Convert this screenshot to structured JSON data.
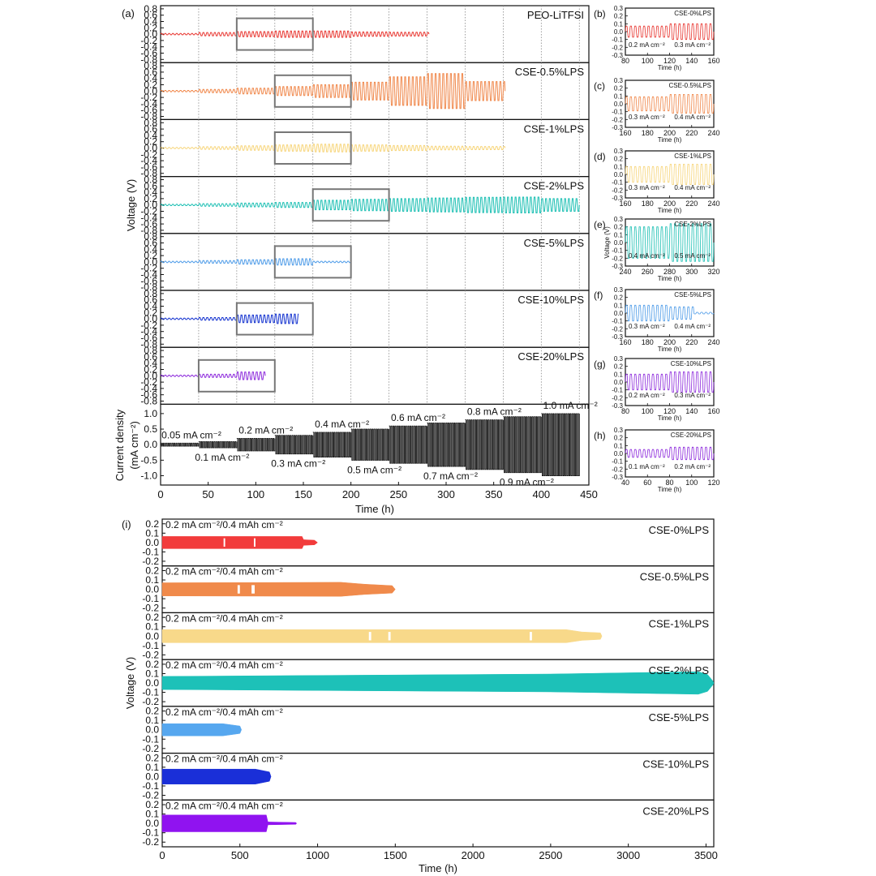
{
  "chart_data": [
    {
      "panel": "(a)",
      "type": "line",
      "xlabel": "Time (h)",
      "ylabel": "Voltage (V)",
      "xlim": [
        0,
        450
      ],
      "x_ticks": [
        "0",
        "50",
        "100",
        "150",
        "200",
        "250",
        "300",
        "350",
        "400",
        "450"
      ],
      "y_ticks": [
        "0.8",
        "0.6",
        "0.4",
        "0.2",
        "0.0",
        "-0.2",
        "-0.4",
        "-0.6",
        "-0.8"
      ],
      "ylim": [
        -0.9,
        0.9
      ],
      "grid": "vertical dotted lines at every 40 h step",
      "step_boundaries_h": [
        0,
        40,
        80,
        120,
        160,
        200,
        240,
        280,
        320,
        360,
        400,
        440
      ],
      "series": [
        {
          "name": "PEO-LiTFSI",
          "color": "#e8352f",
          "end_h": 282,
          "amplitude_v": [
            0.02,
            0.05,
            0.08,
            0.1,
            0.1,
            0.07,
            0.06,
            0.05
          ],
          "zoom_box_h": [
            80,
            160
          ]
        },
        {
          "name": "CSE-0.5%LPS",
          "color": "#f0874a",
          "end_h": 362,
          "amplitude_v": [
            0.02,
            0.05,
            0.09,
            0.14,
            0.2,
            0.28,
            0.45,
            0.55,
            0.3
          ],
          "zoom_box_h": [
            120,
            200
          ]
        },
        {
          "name": "CSE-1%LPS",
          "color": "#f7d57a",
          "end_h": 362,
          "amplitude_v": [
            0.02,
            0.04,
            0.07,
            0.1,
            0.12,
            0.1,
            0.08,
            0.06,
            0.05
          ],
          "zoom_box_h": [
            120,
            200
          ]
        },
        {
          "name": "CSE-2%LPS",
          "color": "#1bbfb3",
          "end_h": 440,
          "amplitude_v": [
            0.02,
            0.04,
            0.06,
            0.08,
            0.15,
            0.18,
            0.2,
            0.22,
            0.24,
            0.25,
            0.2
          ],
          "zoom_box_h": [
            160,
            240
          ]
        },
        {
          "name": "CSE-5%LPS",
          "color": "#4d9be8",
          "end_h": 200,
          "amplitude_v": [
            0.02,
            0.04,
            0.07,
            0.1,
            0.02
          ],
          "zoom_box_h": [
            120,
            200
          ]
        },
        {
          "name": "CSE-10%LPS",
          "color": "#1231cf",
          "end_h": 145,
          "amplitude_v": [
            0.02,
            0.04,
            0.12,
            0.15
          ],
          "zoom_box_h": [
            80,
            160
          ]
        },
        {
          "name": "CSE-20%LPS",
          "color": "#8d2bdc",
          "end_h": 110,
          "amplitude_v": [
            0.02,
            0.05,
            0.12
          ],
          "zoom_box_h": [
            40,
            120
          ]
        }
      ],
      "current_panel": {
        "ylabel_line1": "Current density",
        "ylabel_line2": "(mA cm⁻²)",
        "ylim": [
          -1.3,
          1.3
        ],
        "y_ticks": [
          "1.0",
          "0.5",
          "0.0",
          "-0.5",
          "-1.0"
        ],
        "color": "#111111",
        "steps": [
          {
            "t_start_h": 0,
            "t_end_h": 40,
            "current": 0.05
          },
          {
            "t_start_h": 40,
            "t_end_h": 80,
            "current": 0.1
          },
          {
            "t_start_h": 80,
            "t_end_h": 120,
            "current": 0.2
          },
          {
            "t_start_h": 120,
            "t_end_h": 160,
            "current": 0.3
          },
          {
            "t_start_h": 160,
            "t_end_h": 200,
            "current": 0.4
          },
          {
            "t_start_h": 200,
            "t_end_h": 240,
            "current": 0.5
          },
          {
            "t_start_h": 240,
            "t_end_h": 280,
            "current": 0.6
          },
          {
            "t_start_h": 280,
            "t_end_h": 320,
            "current": 0.7
          },
          {
            "t_start_h": 320,
            "t_end_h": 360,
            "current": 0.8
          },
          {
            "t_start_h": 360,
            "t_end_h": 400,
            "current": 0.9
          },
          {
            "t_start_h": 400,
            "t_end_h": 440,
            "current": 1.0
          }
        ],
        "annotations_top": [
          {
            "text": "0.05 mA cm⁻²",
            "t_h": 1
          },
          {
            "text": "0.2 mA cm⁻²",
            "t_h": 82
          },
          {
            "text": "0.4 mA cm⁻²",
            "t_h": 162
          },
          {
            "text": "0.6 mA cm⁻²",
            "t_h": 242
          },
          {
            "text": "0.8 mA cm⁻²",
            "t_h": 322
          },
          {
            "text": "1.0 mA cm⁻²",
            "t_h": 402
          }
        ],
        "annotations_bottom": [
          {
            "text": "0.1 mA cm⁻²",
            "t_h": 31
          },
          {
            "text": "0.3 mA cm⁻²",
            "t_h": 111
          },
          {
            "text": "0.5 mA cm⁻²",
            "t_h": 191
          },
          {
            "text": "0.7 mA cm⁻²",
            "t_h": 271
          },
          {
            "text": "0.9 mA cm⁻²",
            "t_h": 351
          }
        ]
      }
    },
    {
      "panels": "(b)-(h)",
      "type": "line",
      "insets": [
        {
          "label": "(b)",
          "name": "CSE-0%LPS",
          "color": "#e8352f",
          "xlim": [
            80,
            160
          ],
          "x_ticks": [
            "80",
            "100",
            "120",
            "140",
            "160"
          ],
          "ylim": [
            -0.3,
            0.3
          ],
          "y_ticks": [
            "0.3",
            "0.2",
            "0.1",
            "0.0",
            "-0.1",
            "-0.2",
            "-0.3"
          ],
          "xlabel": "Time (h)",
          "ylabel": "",
          "currents": [
            "0.2 mA cm⁻²",
            "0.3 mA cm⁻²"
          ],
          "amplitude_v": [
            0.07,
            0.1
          ]
        },
        {
          "label": "(c)",
          "name": "CSE-0.5%LPS",
          "color": "#f0874a",
          "xlim": [
            160,
            240
          ],
          "x_ticks": [
            "160",
            "180",
            "200",
            "220",
            "240"
          ],
          "ylim": [
            -0.3,
            0.3
          ],
          "y_ticks": [
            "0.3",
            "0.2",
            "0.1",
            "0.0",
            "-0.1",
            "-0.2",
            "-0.3"
          ],
          "xlabel": "Time (h)",
          "ylabel": "",
          "currents": [
            "0.3 mA cm⁻²",
            "0.4 mA cm⁻²"
          ],
          "amplitude_v": [
            0.09,
            0.12
          ]
        },
        {
          "label": "(d)",
          "name": "CSE-1%LPS",
          "color": "#f7d57a",
          "xlim": [
            160,
            240
          ],
          "x_ticks": [
            "160",
            "180",
            "200",
            "220",
            "240"
          ],
          "ylim": [
            -0.3,
            0.3
          ],
          "y_ticks": [
            "0.3",
            "0.2",
            "0.1",
            "0.0",
            "-0.1",
            "-0.2",
            "-0.3"
          ],
          "xlabel": "Time (h)",
          "ylabel": "",
          "currents": [
            "0.3 mA cm⁻²",
            "0.4 mA cm⁻²"
          ],
          "amplitude_v": [
            0.1,
            0.13
          ]
        },
        {
          "label": "(e)",
          "name": "CSE-2%LPS",
          "color": "#1bbfb3",
          "xlim": [
            240,
            320
          ],
          "x_ticks": [
            "240",
            "260",
            "280",
            "300",
            "320"
          ],
          "ylim": [
            -0.3,
            0.3
          ],
          "y_ticks": [
            "0.3",
            "0.2",
            "0.1",
            "0.0",
            "-0.1",
            "-0.2",
            "-0.3"
          ],
          "xlabel": "Time (h)",
          "ylabel": "Voltage (V)",
          "currents": [
            "0.4 mA cm⁻²",
            "0.5 mA cm⁻²"
          ],
          "amplitude_v": [
            0.2,
            0.24
          ]
        },
        {
          "label": "(f)",
          "name": "CSE-5%LPS",
          "color": "#4d9be8",
          "xlim": [
            160,
            240
          ],
          "x_ticks": [
            "160",
            "180",
            "200",
            "220",
            "240"
          ],
          "ylim": [
            -0.3,
            0.3
          ],
          "y_ticks": [
            "0.3",
            "0.2",
            "0.1",
            "0.0",
            "-0.1",
            "-0.2",
            "-0.3"
          ],
          "xlabel": "Time (h)",
          "ylabel": "",
          "currents": [
            "0.3 mA cm⁻²",
            "0.4 mA cm⁻²"
          ],
          "amplitude_v": [
            0.1,
            0.08
          ],
          "fail_h": 222
        },
        {
          "label": "(g)",
          "name": "CSE-10%LPS",
          "color": "#8d2bdc",
          "xlim": [
            80,
            160
          ],
          "x_ticks": [
            "80",
            "100",
            "120",
            "140",
            "160"
          ],
          "ylim": [
            -0.3,
            0.3
          ],
          "y_ticks": [
            "0.3",
            "0.2",
            "0.1",
            "0.0",
            "-0.1",
            "-0.2",
            "-0.3"
          ],
          "xlabel": "Time (h)",
          "ylabel": "",
          "currents": [
            "0.2 mA cm⁻²",
            "0.3 mA cm⁻²"
          ],
          "amplitude_v": [
            0.1,
            0.13
          ]
        },
        {
          "label": "(h)",
          "name": "CSE-20%LPS",
          "color": "#8d2bdc",
          "xlim": [
            40,
            120
          ],
          "x_ticks": [
            "40",
            "60",
            "80",
            "100",
            "120"
          ],
          "ylim": [
            -0.3,
            0.3
          ],
          "y_ticks": [
            "0.3",
            "0.2",
            "0.1",
            "0.0",
            "-0.1",
            "-0.2",
            "-0.3"
          ],
          "xlabel": "Time (h)",
          "ylabel": "",
          "currents": [
            "0.1 mA cm⁻²",
            "0.2 mA cm⁻²"
          ],
          "amplitude_v": [
            0.05,
            0.08
          ]
        }
      ]
    },
    {
      "panel": "(i)",
      "type": "area",
      "xlabel": "Time (h)",
      "ylabel": "Voltage (V)",
      "xlim": [
        0,
        3550
      ],
      "x_ticks": [
        "0",
        "500",
        "1000",
        "1500",
        "2000",
        "2500",
        "3000",
        "3500"
      ],
      "ylim": [
        -0.25,
        0.25
      ],
      "y_ticks": [
        "0.2",
        "0.1",
        "0.0",
        "-0.1",
        "-0.2"
      ],
      "condition": "0.2 mA cm⁻²/0.4 mAh cm⁻²",
      "series": [
        {
          "name": "CSE-0%LPS",
          "color": "#f23b3b",
          "envelope": [
            [
              0,
              0.065
            ],
            [
              900,
              0.065
            ],
            [
              910,
              0.03
            ],
            [
              980,
              0.025
            ],
            [
              1000,
              0.0
            ]
          ],
          "gaps_h": [
            [
              395,
              405
            ],
            [
              590,
              600
            ]
          ]
        },
        {
          "name": "CSE-0.5%LPS",
          "color": "#f08a4b",
          "envelope": [
            [
              0,
              0.07
            ],
            [
              1150,
              0.075
            ],
            [
              1300,
              0.055
            ],
            [
              1480,
              0.04
            ],
            [
              1500,
              0.0
            ]
          ],
          "gaps_h": [
            [
              485,
              500
            ],
            [
              575,
              595
            ]
          ]
        },
        {
          "name": "CSE-1%LPS",
          "color": "#f8d98a",
          "envelope": [
            [
              0,
              0.07
            ],
            [
              2600,
              0.07
            ],
            [
              2700,
              0.045
            ],
            [
              2820,
              0.035
            ],
            [
              2830,
              0.0
            ]
          ],
          "gaps_h": [
            [
              1330,
              1345
            ],
            [
              1455,
              1470
            ],
            [
              2365,
              2380
            ]
          ]
        },
        {
          "name": "CSE-2%LPS",
          "color": "#1dc1b8",
          "envelope": [
            [
              0,
              0.07
            ],
            [
              2500,
              0.095
            ],
            [
              3450,
              0.12
            ],
            [
              3510,
              0.09
            ],
            [
              3545,
              0.02
            ],
            [
              3550,
              0.0
            ]
          ],
          "gaps_h": []
        },
        {
          "name": "CSE-5%LPS",
          "color": "#56a7ef",
          "envelope": [
            [
              0,
              0.065
            ],
            [
              390,
              0.065
            ],
            [
              500,
              0.04
            ],
            [
              510,
              0.0
            ]
          ],
          "gaps_h": []
        },
        {
          "name": "CSE-10%LPS",
          "color": "#1a2fd8",
          "envelope": [
            [
              0,
              0.08
            ],
            [
              600,
              0.08
            ],
            [
              690,
              0.05
            ],
            [
              700,
              0.0
            ]
          ],
          "gaps_h": []
        },
        {
          "name": "CSE-20%LPS",
          "color": "#9013f0",
          "envelope": [
            [
              0,
              0.09
            ],
            [
              670,
              0.09
            ],
            [
              680,
              0.015
            ],
            [
              860,
              0.01
            ],
            [
              865,
              0.0
            ]
          ],
          "gaps_h": []
        }
      ]
    }
  ]
}
